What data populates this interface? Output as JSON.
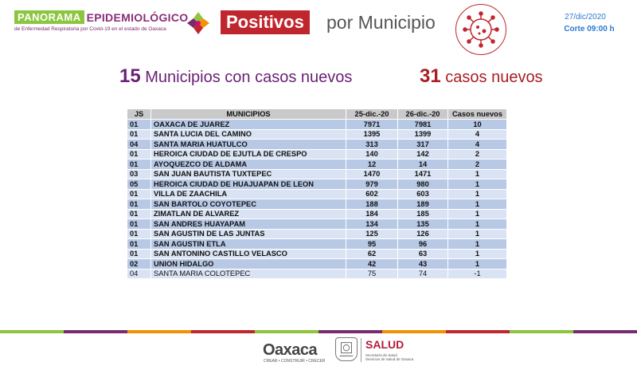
{
  "header": {
    "panorama": "PANORAMA",
    "epidemiologico": "EPIDEMIOLÓGICO",
    "subtitle": "de Enfermedad Respiratoria por Covid-19 en el estado de Oaxaca",
    "positivos": "Positivos",
    "por_municipio": "por Municipio",
    "date": "27/dic/2020",
    "corte": "Corte 09:00 h"
  },
  "summary": {
    "municipios_num": "15",
    "municipios_text": "Municipios con casos nuevos",
    "casos_num": "31",
    "casos_text": "casos nuevos"
  },
  "table": {
    "headers": [
      "JS",
      "MUNICIPIOS",
      "25-dic.-20",
      "26-dic.-20",
      "Casos nuevos"
    ],
    "rows": [
      [
        "01",
        "OAXACA DE JUAREZ",
        "7971",
        "7981",
        "10"
      ],
      [
        "01",
        "SANTA LUCIA DEL CAMINO",
        "1395",
        "1399",
        "4"
      ],
      [
        "04",
        "SANTA MARIA HUATULCO",
        "313",
        "317",
        "4"
      ],
      [
        "01",
        "HEROICA CIUDAD DE EJUTLA DE CRESPO",
        "140",
        "142",
        "2"
      ],
      [
        "01",
        "AYOQUEZCO DE ALDAMA",
        "12",
        "14",
        "2"
      ],
      [
        "03",
        "SAN JUAN BAUTISTA TUXTEPEC",
        "1470",
        "1471",
        "1"
      ],
      [
        "05",
        "HEROICA CIUDAD DE HUAJUAPAN DE LEON",
        "979",
        "980",
        "1"
      ],
      [
        "01",
        "VILLA DE ZAACHILA",
        "602",
        "603",
        "1"
      ],
      [
        "01",
        "SAN BARTOLO COYOTEPEC",
        "188",
        "189",
        "1"
      ],
      [
        "01",
        "ZIMATLAN DE ALVAREZ",
        "184",
        "185",
        "1"
      ],
      [
        "01",
        "SAN ANDRES HUAYAPAM",
        "134",
        "135",
        "1"
      ],
      [
        "01",
        "SAN AGUSTIN DE LAS JUNTAS",
        "125",
        "126",
        "1"
      ],
      [
        "01",
        "SAN AGUSTIN ETLA",
        "95",
        "96",
        "1"
      ],
      [
        "01",
        "SAN ANTONINO CASTILLO VELASCO",
        "62",
        "63",
        "1"
      ],
      [
        "02",
        "UNION HIDALGO",
        "42",
        "43",
        "1"
      ],
      [
        "04",
        "SANTA MARIA COLOTEPEC",
        "75",
        "74",
        "-1"
      ]
    ]
  },
  "footer": {
    "oaxaca": "Oaxaca",
    "oaxaca_tagline": "CREAR • CONSTRUIR • CRECER",
    "salud": "SALUD",
    "salud_sub1": "Secretaría de Salud",
    "salud_sub2": "Servicios de Salud de Oaxaca"
  },
  "colors": {
    "accent_red": "#c0262d",
    "purple": "#6a2176",
    "blue": "#2d7ad1",
    "green": "#8cc63f"
  },
  "icons": [
    "flower-logo-icon",
    "virus-icon",
    "state-seal-icon"
  ]
}
